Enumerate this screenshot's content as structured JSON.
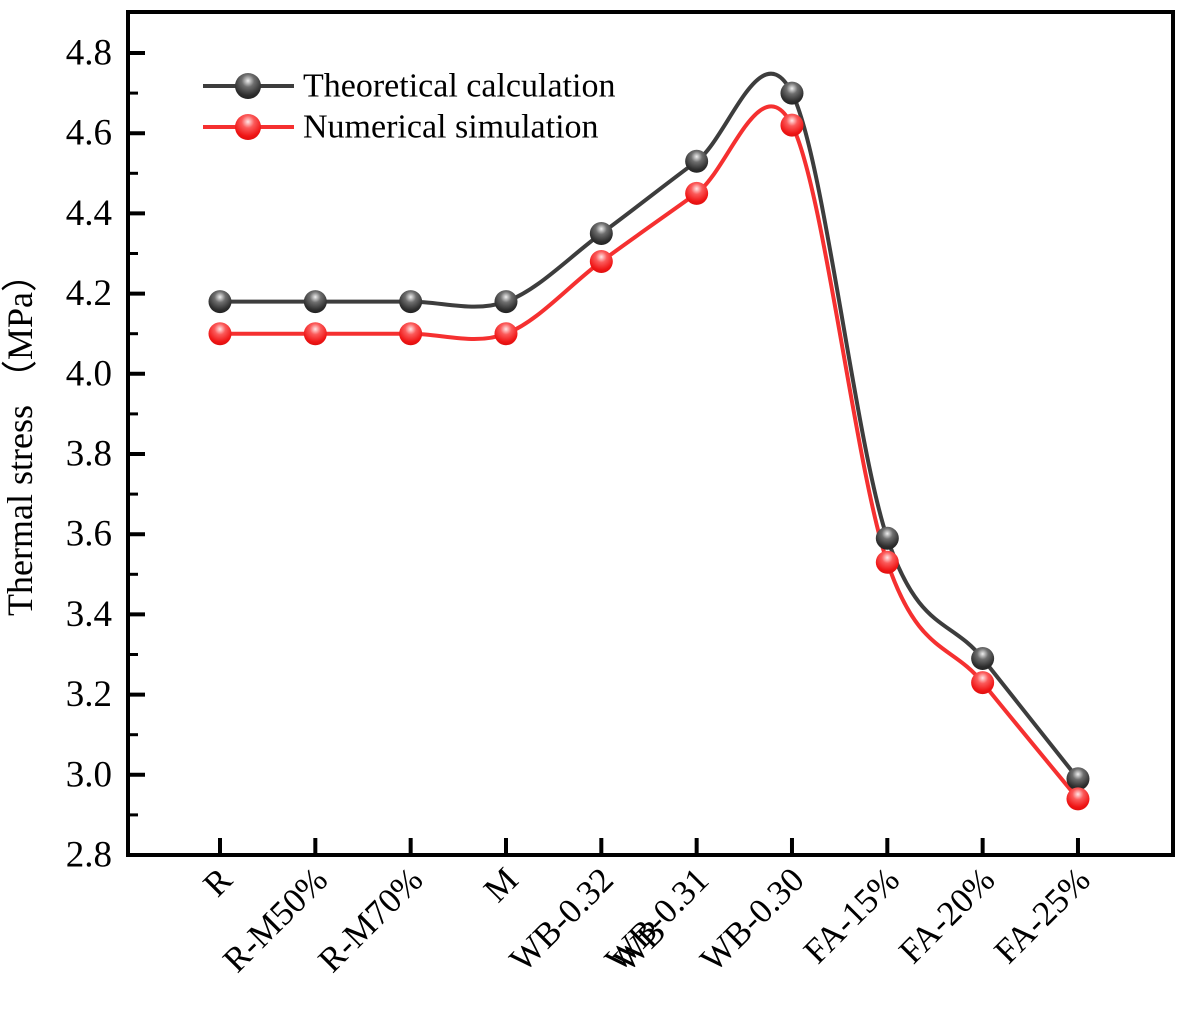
{
  "chart_data": {
    "type": "line",
    "title": "",
    "xlabel": "",
    "ylabel": "Thermal stress （MPa）",
    "categories": [
      "R",
      "R-M50%",
      "R-M70%",
      "M",
      "WB-0.32",
      "WB-0.31",
      "WB-0.30",
      "FA-15%",
      "FA-20%",
      "FA-25%"
    ],
    "series": [
      {
        "name": "Theoretical calculation",
        "color": "#3d3d3d",
        "marker": "sphere",
        "values": [
          4.18,
          4.18,
          4.18,
          4.18,
          4.35,
          4.53,
          4.7,
          3.59,
          3.29,
          2.99
        ]
      },
      {
        "name": "Numerical simulation",
        "color": "#f53030",
        "marker": "sphere",
        "values": [
          4.1,
          4.1,
          4.1,
          4.1,
          4.28,
          4.45,
          4.62,
          3.53,
          3.23,
          2.94
        ]
      }
    ],
    "ylim": [
      2.8,
      4.9
    ],
    "ytick_labels": [
      "2.8",
      "3.0",
      "3.2",
      "3.4",
      "3.6",
      "3.8",
      "4.0",
      "4.2",
      "4.4",
      "4.6",
      "4.8"
    ],
    "yticks_minor": [
      2.9,
      3.1,
      3.3,
      3.5,
      3.7,
      3.9,
      4.1,
      4.3,
      4.5,
      4.7
    ],
    "grid": false,
    "frame": true,
    "tick_direction": "in",
    "line_style": "smooth-spline",
    "x_label_rotation_deg": -45,
    "x_label_overlap_artifact": {
      "text": "WB",
      "category_index": 5
    },
    "legend_position": "top-left"
  },
  "colors": {
    "axis": "#000000",
    "text": "#000000",
    "background": "#ffffff",
    "theoretical_line": "#3d3d3d",
    "numerical_line": "#f53030"
  }
}
